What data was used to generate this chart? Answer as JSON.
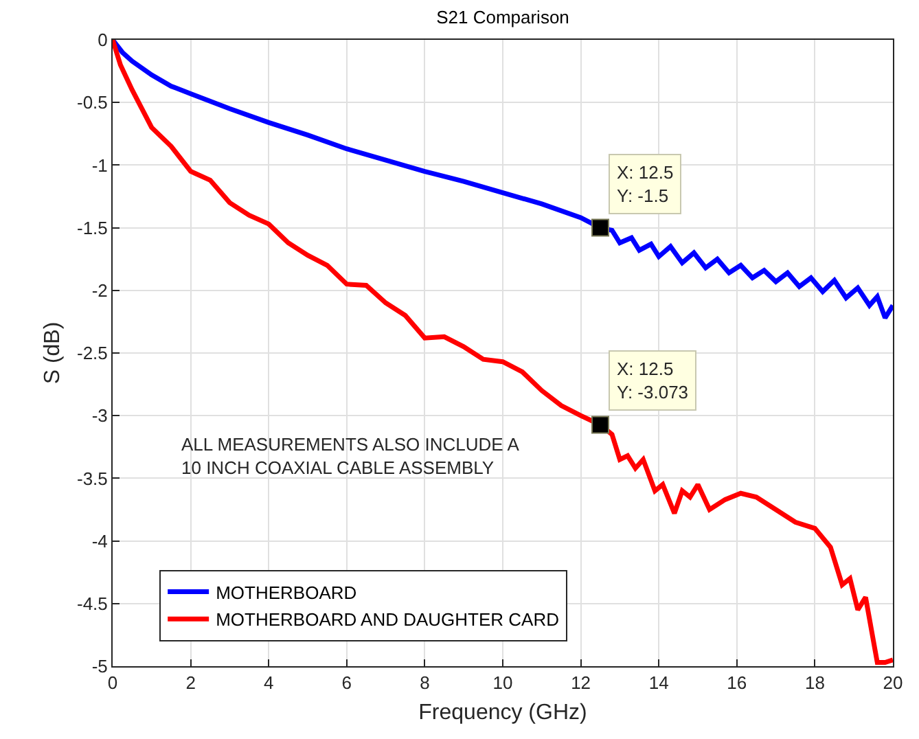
{
  "chart_data": {
    "type": "line",
    "title": "S21 Comparison",
    "xlabel": "Frequency (GHz)",
    "ylabel": "S (dB)",
    "xlim": [
      0,
      20
    ],
    "xticks": [
      0,
      2,
      4,
      6,
      8,
      10,
      12,
      14,
      16,
      18,
      20
    ],
    "ylim": [
      -5,
      0
    ],
    "yticks": [
      -5,
      -4.5,
      -4,
      -3.5,
      -3,
      -2.5,
      -2,
      -1.5,
      -1,
      -0.5,
      0
    ],
    "grid": true,
    "legend": "bottom left",
    "line_style": "solid",
    "marker": "none",
    "series": [
      {
        "name": "MOTHERBOARD",
        "color": "#0000ff",
        "x": [
          0,
          0.25,
          0.5,
          1,
          1.5,
          2,
          3,
          4,
          5,
          6,
          7,
          8,
          9,
          10,
          11,
          12,
          12.5,
          12.8,
          13.0,
          13.3,
          13.5,
          13.8,
          14.0,
          14.3,
          14.6,
          14.9,
          15.2,
          15.5,
          15.8,
          16.1,
          16.4,
          16.7,
          17.0,
          17.3,
          17.6,
          17.9,
          18.2,
          18.5,
          18.8,
          19.1,
          19.4,
          19.6,
          19.8,
          20
        ],
        "values": [
          0,
          -0.1,
          -0.17,
          -0.28,
          -0.37,
          -0.43,
          -0.55,
          -0.66,
          -0.76,
          -0.87,
          -0.96,
          -1.05,
          -1.13,
          -1.22,
          -1.31,
          -1.42,
          -1.5,
          -1.52,
          -1.62,
          -1.58,
          -1.68,
          -1.63,
          -1.73,
          -1.65,
          -1.78,
          -1.7,
          -1.82,
          -1.75,
          -1.86,
          -1.8,
          -1.9,
          -1.84,
          -1.93,
          -1.86,
          -1.97,
          -1.9,
          -2.01,
          -1.92,
          -2.06,
          -1.98,
          -2.12,
          -2.05,
          -2.22,
          -2.12
        ]
      },
      {
        "name": "MOTHERBOARD AND DAUGHTER CARD",
        "color": "#ff0000",
        "x": [
          0,
          0.2,
          0.5,
          1,
          1.5,
          2,
          2.5,
          3,
          3.5,
          4,
          4.5,
          5,
          5.5,
          6,
          6.5,
          7,
          7.5,
          8,
          8.5,
          9,
          9.5,
          10,
          10.5,
          11,
          11.5,
          12,
          12.5,
          12.8,
          13.0,
          13.2,
          13.4,
          13.6,
          13.9,
          14.1,
          14.4,
          14.6,
          14.8,
          15.0,
          15.3,
          15.7,
          16.1,
          16.5,
          17.0,
          17.5,
          18.0,
          18.4,
          18.7,
          18.9,
          19.1,
          19.3,
          19.6,
          19.8,
          20
        ],
        "values": [
          0,
          -0.2,
          -0.4,
          -0.7,
          -0.85,
          -1.05,
          -1.12,
          -1.3,
          -1.4,
          -1.47,
          -1.62,
          -1.72,
          -1.8,
          -1.95,
          -1.96,
          -2.1,
          -2.2,
          -2.38,
          -2.37,
          -2.45,
          -2.55,
          -2.57,
          -2.65,
          -2.8,
          -2.92,
          -3.0,
          -3.073,
          -3.15,
          -3.35,
          -3.32,
          -3.42,
          -3.35,
          -3.6,
          -3.55,
          -3.78,
          -3.6,
          -3.65,
          -3.55,
          -3.75,
          -3.67,
          -3.62,
          -3.65,
          -3.75,
          -3.85,
          -3.9,
          -4.05,
          -4.35,
          -4.3,
          -4.55,
          -4.45,
          -4.97,
          -4.97,
          -4.95
        ]
      }
    ],
    "annotations": [
      {
        "text": "X: 12.5\nY: -1.5",
        "x": 12.5,
        "y": -1.5
      },
      {
        "text": "X: 12.5\nY: -3.073",
        "x": 12.5,
        "y": -3.073
      },
      "ALL MEASUREMENTS ALSO INCLUDE A\n10 INCH COAXIAL CABLE ASSEMBLY"
    ]
  }
}
